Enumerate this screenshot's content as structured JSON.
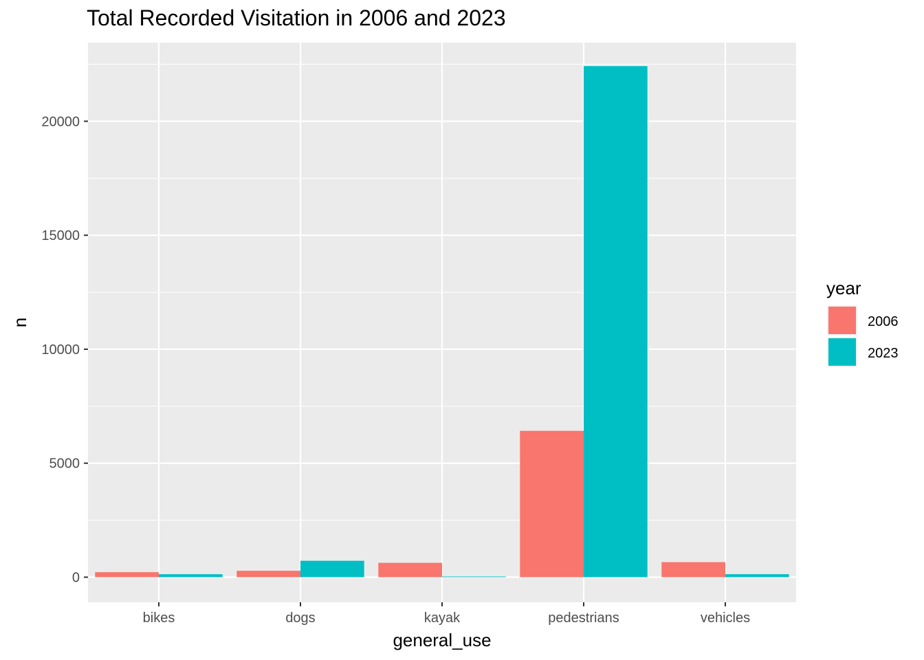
{
  "chart_data": {
    "type": "bar",
    "title": "Total Recorded Visitation in 2006 and 2023",
    "xlabel": "general_use",
    "ylabel": "n",
    "categories": [
      "bikes",
      "dogs",
      "kayak",
      "pedestrians",
      "vehicles"
    ],
    "series": [
      {
        "name": "2006",
        "color": "#F8766D",
        "values": [
          220,
          280,
          630,
          6420,
          660
        ]
      },
      {
        "name": "2023",
        "color": "#00BFC4",
        "values": [
          130,
          720,
          30,
          22420,
          130
        ]
      }
    ],
    "ylim": [
      -1100,
      23450
    ],
    "yticks": [
      0,
      5000,
      10000,
      15000,
      20000
    ],
    "ytick_labels": [
      "0",
      "5000",
      "10000",
      "15000",
      "20000"
    ],
    "grid": true,
    "legend": {
      "title": "year",
      "position": "right"
    },
    "panel_background": "#EBEBEB"
  }
}
